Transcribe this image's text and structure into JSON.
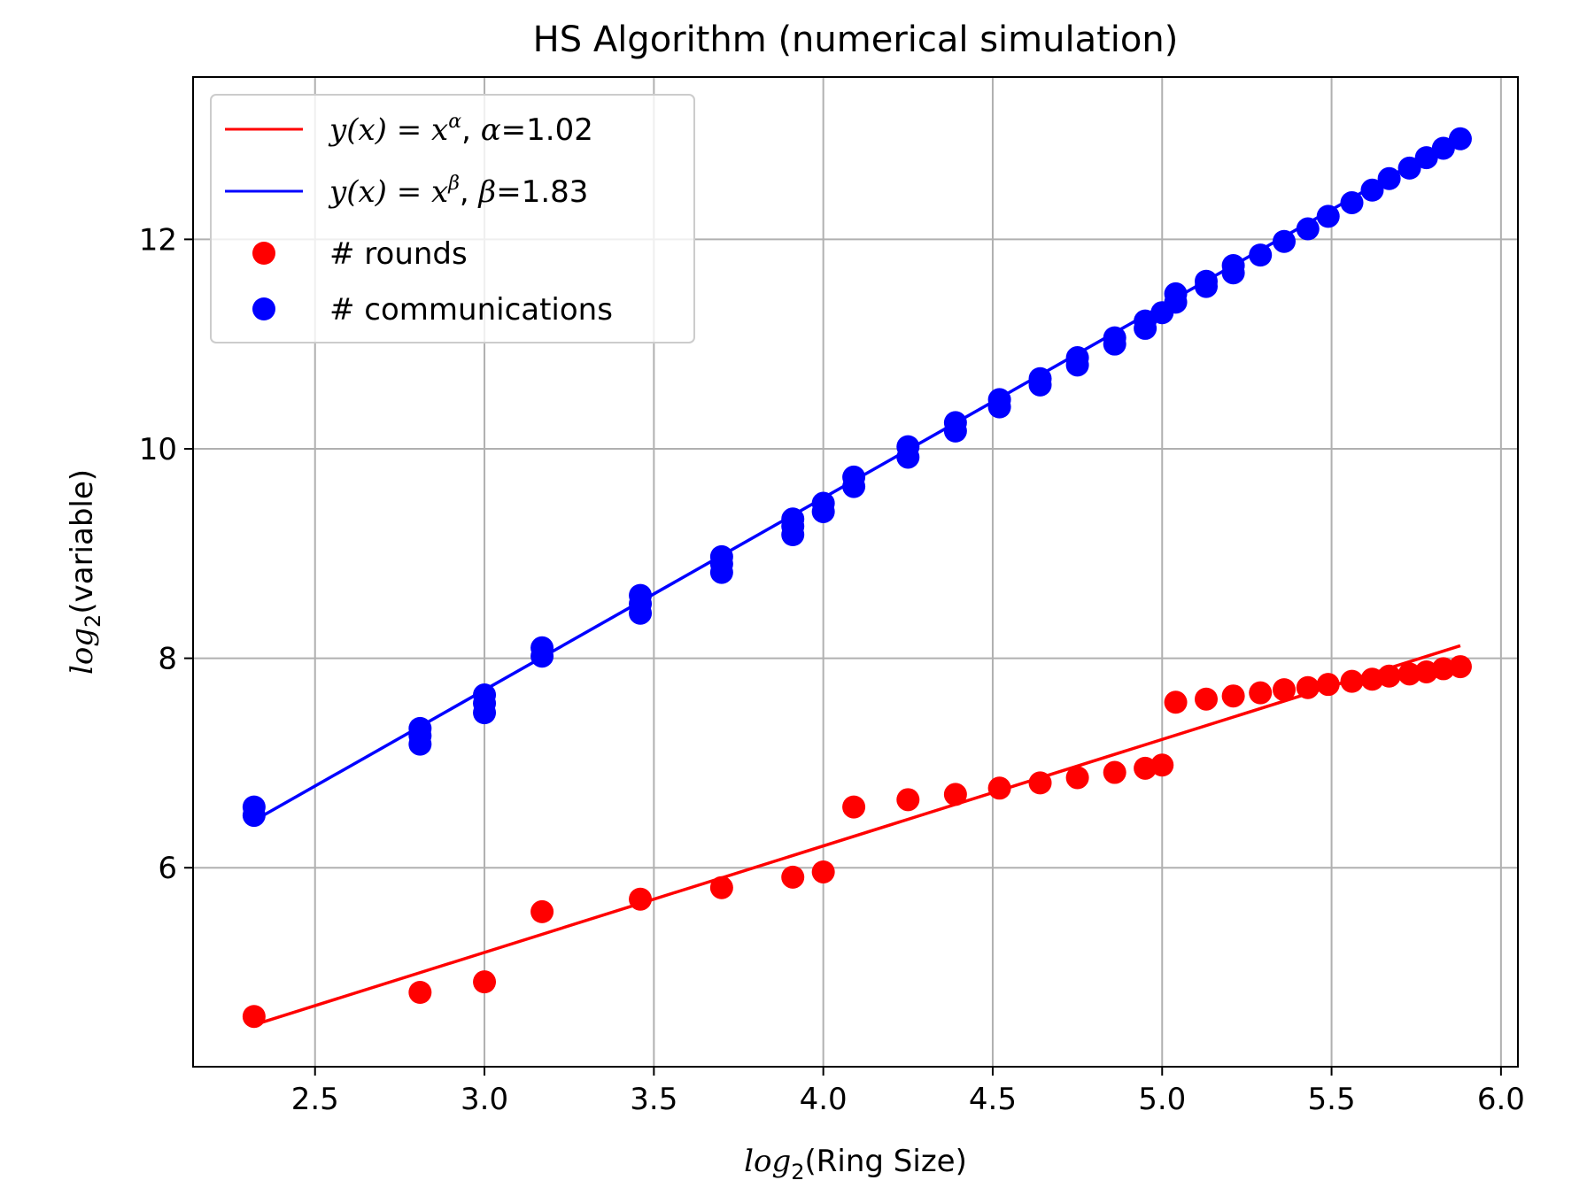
{
  "chart_data": {
    "type": "scatter",
    "title": "HS Algorithm (numerical simulation)",
    "xlabel": {
      "fn": "log",
      "sub": "2",
      "arg": "(Ring Size)"
    },
    "ylabel": {
      "fn": "log",
      "sub": "2",
      "arg": "(variable)"
    },
    "xlim": [
      2.14,
      6.05
    ],
    "ylim": [
      4.1,
      13.55
    ],
    "xticks": [
      2.5,
      3.0,
      3.5,
      4.0,
      4.5,
      5.0,
      5.5,
      6.0
    ],
    "xtick_labels": [
      "2.5",
      "3.0",
      "3.5",
      "4.0",
      "4.5",
      "5.0",
      "5.5",
      "6.0"
    ],
    "yticks": [
      6,
      8,
      10,
      12
    ],
    "ytick_labels": [
      "6",
      "8",
      "10",
      "12"
    ],
    "grid": true,
    "legend_position": "upper-left",
    "legend": [
      {
        "kind": "line",
        "color": "#ff0000",
        "prefix": "y(x) = x",
        "sup": "α",
        "sep": ", ",
        "param": "α",
        "value": "=1.02"
      },
      {
        "kind": "line",
        "color": "#0000ff",
        "prefix": "y(x) = x",
        "sup": "β",
        "sep": ", ",
        "param": "β",
        "value": "=1.83"
      },
      {
        "kind": "marker",
        "color": "#ff0000",
        "label": "# rounds"
      },
      {
        "kind": "marker",
        "color": "#0000ff",
        "label": "# communications"
      }
    ],
    "fit_lines": [
      {
        "color": "#ff0000",
        "x": [
          2.32,
          5.88
        ],
        "y": [
          4.5,
          8.12
        ]
      },
      {
        "color": "#0000ff",
        "x": [
          2.32,
          5.88
        ],
        "y": [
          6.45,
          12.98
        ]
      }
    ],
    "series": [
      {
        "name": "# rounds",
        "color": "#ff0000",
        "x": [
          2.32,
          2.81,
          3.0,
          3.17,
          3.46,
          3.7,
          3.91,
          4.0,
          4.09,
          4.25,
          4.39,
          4.52,
          4.64,
          4.75,
          4.86,
          4.95,
          5.0,
          5.04,
          5.13,
          5.21,
          5.29,
          5.36,
          5.43,
          5.49,
          5.56,
          5.62,
          5.67,
          5.73,
          5.78,
          5.83,
          5.88
        ],
        "y": [
          4.58,
          4.81,
          4.91,
          5.58,
          5.7,
          5.81,
          5.91,
          5.96,
          6.58,
          6.65,
          6.7,
          6.76,
          6.81,
          6.86,
          6.91,
          6.95,
          6.98,
          7.58,
          7.61,
          7.64,
          7.67,
          7.7,
          7.72,
          7.75,
          7.78,
          7.8,
          7.83,
          7.85,
          7.87,
          7.9,
          7.92
        ]
      },
      {
        "name": "# communications",
        "color": "#0000ff",
        "x": [
          2.32,
          2.32,
          2.81,
          2.81,
          2.81,
          3.0,
          3.0,
          3.0,
          3.17,
          3.17,
          3.46,
          3.46,
          3.46,
          3.7,
          3.7,
          3.7,
          3.91,
          3.91,
          3.91,
          4.0,
          4.0,
          4.09,
          4.09,
          4.25,
          4.25,
          4.39,
          4.39,
          4.52,
          4.52,
          4.64,
          4.64,
          4.75,
          4.75,
          4.86,
          4.86,
          4.95,
          4.95,
          5.0,
          5.04,
          5.04,
          5.13,
          5.13,
          5.21,
          5.21,
          5.29,
          5.36,
          5.43,
          5.49,
          5.56,
          5.62,
          5.67,
          5.73,
          5.78,
          5.83,
          5.88
        ],
        "y": [
          6.5,
          6.58,
          7.18,
          7.26,
          7.33,
          7.48,
          7.57,
          7.65,
          8.02,
          8.1,
          8.43,
          8.52,
          8.6,
          8.82,
          8.9,
          8.97,
          9.18,
          9.26,
          9.33,
          9.4,
          9.48,
          9.64,
          9.73,
          9.92,
          10.02,
          10.17,
          10.25,
          10.4,
          10.47,
          10.61,
          10.67,
          10.8,
          10.87,
          11.0,
          11.06,
          11.15,
          11.22,
          11.3,
          11.4,
          11.48,
          11.55,
          11.6,
          11.68,
          11.75,
          11.85,
          11.98,
          12.1,
          12.22,
          12.35,
          12.47,
          12.58,
          12.68,
          12.78,
          12.87,
          12.96
        ]
      }
    ]
  }
}
